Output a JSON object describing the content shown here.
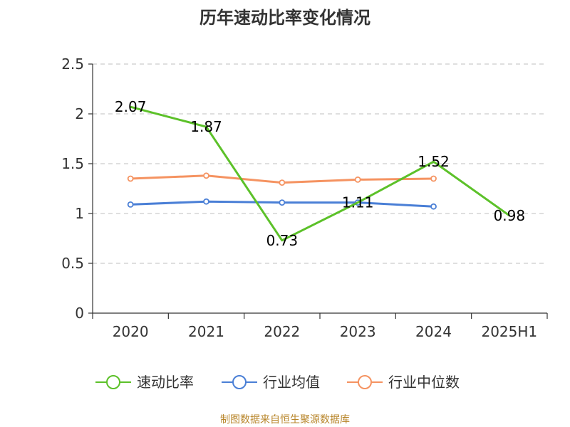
{
  "chart_data": {
    "type": "line",
    "title": "历年速动比率变化情况",
    "categories": [
      "2020",
      "2021",
      "2022",
      "2023",
      "2024",
      "2025H1"
    ],
    "ylim": [
      0,
      2.5
    ],
    "yticks": [
      "0",
      "0.5",
      "1",
      "1.5",
      "2",
      "2.5"
    ],
    "grid": true,
    "legend_position": "bottom",
    "series": [
      {
        "name": "速动比率",
        "color": "#5cc129",
        "values": [
          2.07,
          1.87,
          0.73,
          1.11,
          1.52,
          0.98
        ],
        "labels": [
          "2.07",
          "1.87",
          "0.73",
          "1.11",
          "1.52",
          "0.98"
        ]
      },
      {
        "name": "行业均值",
        "color": "#4a7fd6",
        "values": [
          1.09,
          1.12,
          1.11,
          1.11,
          1.07,
          null
        ]
      },
      {
        "name": "行业中位数",
        "color": "#f59361",
        "values": [
          1.35,
          1.38,
          1.31,
          1.34,
          1.35,
          null
        ]
      }
    ]
  },
  "footer": {
    "source": "制图数据来自恒生聚源数据库"
  }
}
